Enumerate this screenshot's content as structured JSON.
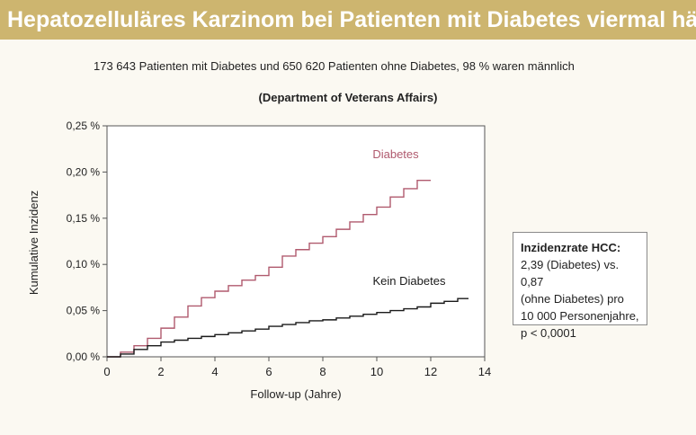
{
  "header": {
    "title": "Hepatozelluläres Karzinom bei Patienten mit Diabetes viermal häufiger"
  },
  "subtitle": "173 643 Patienten mit Diabetes und 650 620 Patienten ohne Diabetes, 98 % waren männlich",
  "source": "(Department of Veterans Affairs)",
  "infobox": {
    "title": "Inzidenzrate HCC:",
    "text": "2,39 (Diabetes) vs. 0,87\n(ohne Diabetes) pro\n10 000 Personenjahre,\np < 0,0001"
  },
  "colors": {
    "diabetes": "#b05a6e",
    "kein_diabetes": "#1a1a1a",
    "header_bg": "#cdb56f"
  },
  "chart_data": {
    "type": "line",
    "xlabel": "Follow-up (Jahre)",
    "ylabel": "Kumulative Inzidenz",
    "xlim": [
      0,
      14
    ],
    "ylim": [
      0,
      0.25
    ],
    "x_ticks": [
      "0",
      "2",
      "4",
      "6",
      "8",
      "10",
      "12",
      "14"
    ],
    "y_ticks": [
      "0,00 %",
      "0,05 %",
      "0,10 %",
      "0,15 %",
      "0,20 %",
      "0,25 %"
    ],
    "grid": false,
    "series": [
      {
        "name": "Diabetes",
        "x": [
          0,
          0.5,
          1,
          1.5,
          2,
          2.5,
          3,
          3.5,
          4,
          4.5,
          5,
          5.5,
          6,
          6.5,
          7,
          7.5,
          8,
          8.5,
          9,
          9.5,
          10,
          10.5,
          11,
          11.5,
          12
        ],
        "y": [
          0.0,
          0.005,
          0.012,
          0.02,
          0.031,
          0.043,
          0.055,
          0.064,
          0.071,
          0.077,
          0.083,
          0.088,
          0.097,
          0.109,
          0.116,
          0.123,
          0.13,
          0.138,
          0.146,
          0.154,
          0.162,
          0.173,
          0.182,
          0.191,
          0.191
        ]
      },
      {
        "name": "Kein Diabetes",
        "x": [
          0,
          0.5,
          1,
          1.5,
          2,
          2.5,
          3,
          3.5,
          4,
          4.5,
          5,
          5.5,
          6,
          6.5,
          7,
          7.5,
          8,
          8.5,
          9,
          9.5,
          10,
          10.5,
          11,
          11.5,
          12,
          12.5,
          13,
          13.4
        ],
        "y": [
          0.0,
          0.003,
          0.008,
          0.012,
          0.016,
          0.018,
          0.02,
          0.022,
          0.024,
          0.026,
          0.028,
          0.03,
          0.033,
          0.035,
          0.037,
          0.039,
          0.04,
          0.042,
          0.044,
          0.046,
          0.048,
          0.05,
          0.052,
          0.054,
          0.058,
          0.06,
          0.063,
          0.063
        ]
      }
    ]
  }
}
